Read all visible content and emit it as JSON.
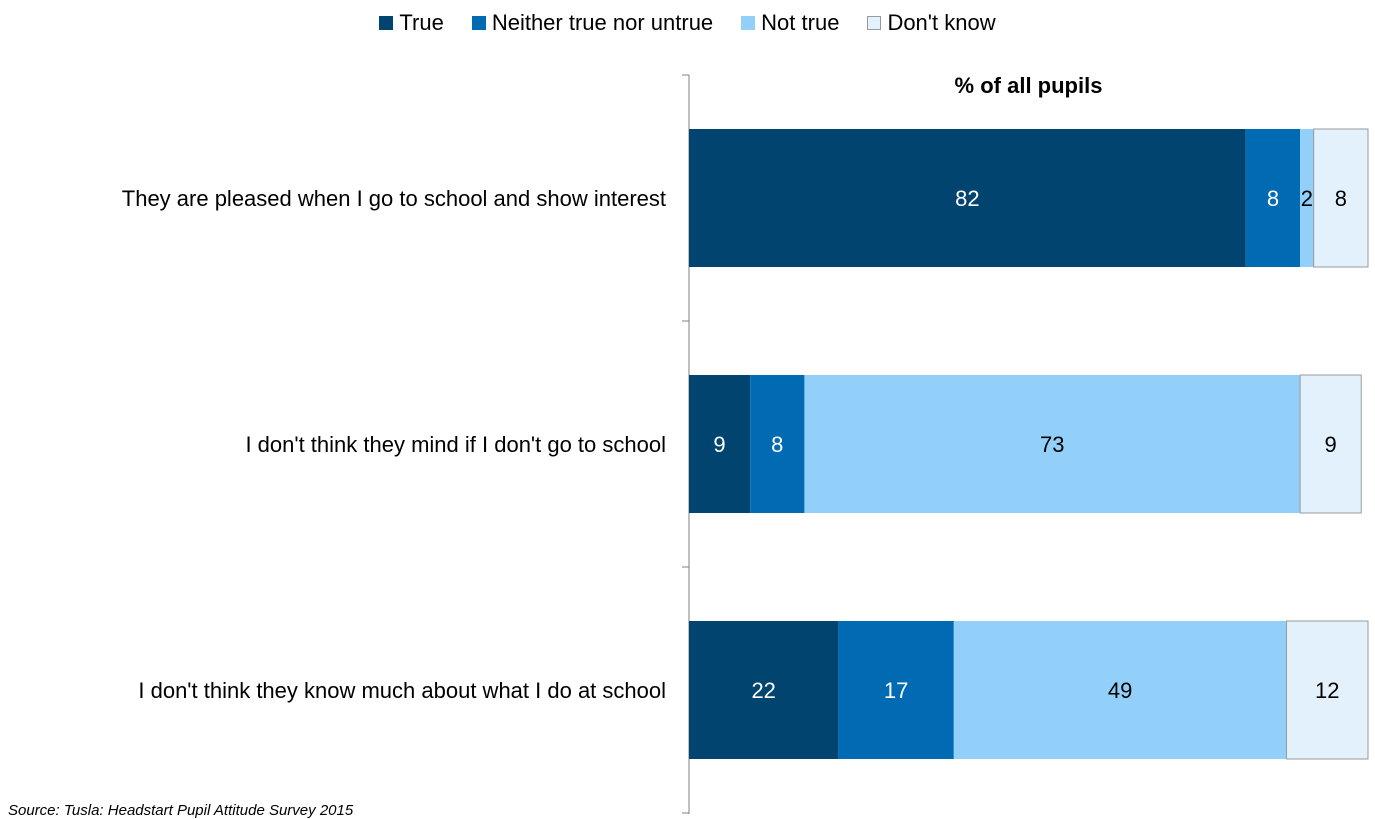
{
  "chart_data": {
    "type": "bar",
    "orientation": "horizontal",
    "stacked": true,
    "title": "% of all pupils",
    "categories": [
      "They are pleased when I go to school and show interest",
      "I don't think they mind if I don't go to school",
      "I don't think they know much about what I do at school"
    ],
    "series": [
      {
        "name": "True",
        "values": [
          82,
          9,
          22
        ],
        "color": "#00446f"
      },
      {
        "name": "Neither true nor untrue",
        "values": [
          8,
          8,
          17
        ],
        "color": "#006bb3"
      },
      {
        "name": "Not true",
        "values": [
          2,
          73,
          49
        ],
        "color": "#92d0fa"
      },
      {
        "name": "Don't know",
        "values": [
          8,
          9,
          12
        ],
        "color": "#e3f1fc"
      }
    ],
    "data_labels": [
      [
        "82",
        "8",
        "2",
        "8"
      ],
      [
        "9",
        "8",
        "73",
        "9"
      ],
      [
        "22",
        "17",
        "49",
        "12"
      ]
    ],
    "label_colors": [
      "#ffffff",
      "#ffffff",
      "#000000",
      "#000000"
    ],
    "legend_position": "top",
    "grid": false,
    "xlim": [
      0,
      100
    ]
  },
  "source_note": "Source: Tusla: Headstart Pupil Attitude Survey 2015"
}
